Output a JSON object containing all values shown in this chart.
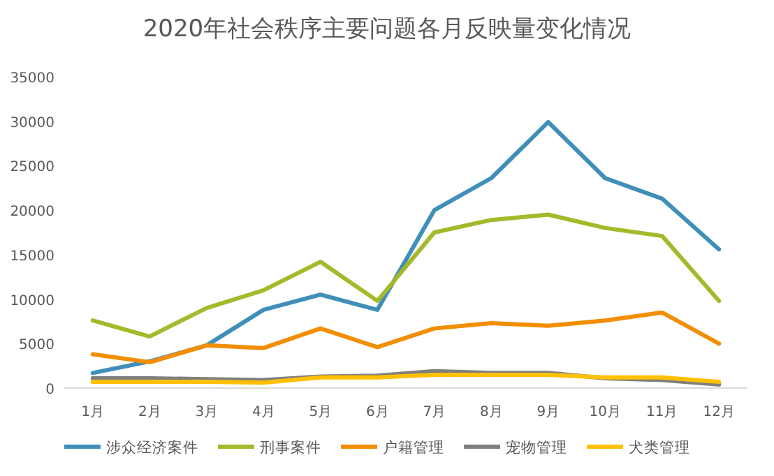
{
  "chart_data": {
    "type": "line",
    "title": "2020年社会秩序主要问题各月反映量变化情况",
    "categories": [
      "1月",
      "2月",
      "3月",
      "4月",
      "5月",
      "6月",
      "7月",
      "8月",
      "9月",
      "10月",
      "11月",
      "12月"
    ],
    "series": [
      {
        "name": "涉众经济案件",
        "color": "#3f8fba",
        "values": [
          1700,
          3000,
          4800,
          8800,
          10500,
          8800,
          20000,
          23600,
          29900,
          23600,
          21300,
          15600
        ]
      },
      {
        "name": "刑事案件",
        "color": "#a5b92a",
        "values": [
          7600,
          5800,
          9000,
          11000,
          14200,
          9800,
          17500,
          18900,
          19500,
          18000,
          17100,
          9800
        ]
      },
      {
        "name": "户籍管理",
        "color": "#f28e00",
        "values": [
          3800,
          2900,
          4800,
          4500,
          6700,
          4600,
          6700,
          7300,
          7000,
          7600,
          8500,
          5000
        ]
      },
      {
        "name": "宠物管理",
        "color": "#7f7f7f",
        "values": [
          1100,
          1100,
          1000,
          900,
          1300,
          1400,
          1900,
          1700,
          1700,
          1100,
          900,
          400
        ]
      },
      {
        "name": "犬类管理",
        "color": "#ffc000",
        "values": [
          700,
          700,
          700,
          600,
          1200,
          1200,
          1500,
          1500,
          1500,
          1200,
          1200,
          700
        ]
      }
    ],
    "ylim": [
      0,
      35000
    ],
    "yticks": [
      0,
      5000,
      10000,
      15000,
      20000,
      25000,
      30000,
      35000
    ],
    "grid": false,
    "legend": "bottom",
    "marker": "none",
    "line_style": "solid"
  }
}
